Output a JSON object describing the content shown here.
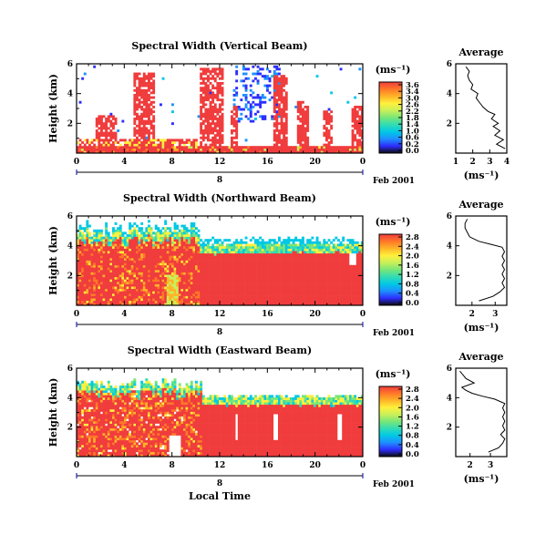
{
  "chart_data": {
    "type": "heatmap",
    "colorbar_unit": "(ms⁻¹)",
    "date_label": "Feb 2001",
    "x_title": "Local Time",
    "axis_labels": {
      "x_ticks": [
        "0",
        "4",
        "8",
        "12",
        "16",
        "20",
        "0"
      ],
      "date_day": "8",
      "time_range_hours": [
        0,
        24
      ]
    },
    "panels": [
      {
        "title": "Spectral Width (Vertical Beam)",
        "ylabel": "Height (km)",
        "y_ticks": [
          6,
          4,
          2
        ],
        "ylim": [
          0,
          6
        ],
        "colorbar_ticks": [
          "3.6",
          "3.4",
          "3.0",
          "2.6",
          "2.2",
          "1.8",
          "1.4",
          "1.0",
          "0.6",
          "0.2",
          "0.0"
        ],
        "profile": {
          "title": "Average",
          "xlabel": "(ms⁻¹)",
          "x_ticks": [
            1,
            2,
            3,
            4
          ],
          "xlim": [
            1,
            4
          ],
          "y_ticks": [
            2,
            4,
            6
          ],
          "ylim": [
            0,
            6
          ],
          "values": [
            [
              3.9,
              0.3
            ],
            [
              3.4,
              0.6
            ],
            [
              3.8,
              0.9
            ],
            [
              3.3,
              1.2
            ],
            [
              3.6,
              1.5
            ],
            [
              3.2,
              1.8
            ],
            [
              3.5,
              2.0
            ],
            [
              3.1,
              2.3
            ],
            [
              3.3,
              2.6
            ],
            [
              2.9,
              2.8
            ],
            [
              2.6,
              3.1
            ],
            [
              2.4,
              3.4
            ],
            [
              2.2,
              3.7
            ],
            [
              2.3,
              4.0
            ],
            [
              1.9,
              4.3
            ],
            [
              2.0,
              4.6
            ],
            [
              1.8,
              4.9
            ],
            [
              1.7,
              5.2
            ],
            [
              1.8,
              5.5
            ],
            [
              1.6,
              5.8
            ]
          ]
        }
      },
      {
        "title": "Spectral Width (Northward Beam)",
        "ylabel": "Height (km)",
        "y_ticks": [
          6,
          4,
          2
        ],
        "ylim": [
          0,
          6
        ],
        "colorbar_ticks": [
          "2.8",
          "2.4",
          "2.0",
          "1.6",
          "1.2",
          "0.8",
          "0.4",
          "0.0"
        ],
        "profile": {
          "title": "Average",
          "xlabel": "(ms⁻¹)",
          "x_ticks": [
            2,
            3
          ],
          "xlim": [
            1.3,
            3.5
          ],
          "y_ticks": [
            2,
            4,
            6
          ],
          "ylim": [
            0,
            6
          ],
          "values": [
            [
              2.3,
              0.3
            ],
            [
              2.9,
              0.6
            ],
            [
              3.2,
              0.9
            ],
            [
              3.4,
              1.2
            ],
            [
              3.3,
              1.5
            ],
            [
              3.4,
              1.8
            ],
            [
              3.3,
              2.1
            ],
            [
              3.4,
              2.4
            ],
            [
              3.3,
              2.7
            ],
            [
              3.4,
              3.0
            ],
            [
              3.3,
              3.3
            ],
            [
              3.4,
              3.6
            ],
            [
              3.3,
              3.9
            ],
            [
              2.8,
              4.1
            ],
            [
              2.3,
              4.3
            ],
            [
              1.9,
              4.6
            ],
            [
              1.8,
              4.9
            ],
            [
              1.7,
              5.2
            ],
            [
              1.7,
              5.5
            ],
            [
              1.8,
              5.8
            ]
          ]
        }
      },
      {
        "title": "Spectral Width (Eastward Beam)",
        "ylabel": "Height (km)",
        "y_ticks": [
          6,
          4,
          2
        ],
        "ylim": [
          0,
          6
        ],
        "colorbar_ticks": [
          "2.8",
          "2.4",
          "2.0",
          "1.6",
          "1.2",
          "0.8",
          "0.4",
          "0.0"
        ],
        "profile": {
          "title": "Average",
          "xlabel": "(ms⁻¹)",
          "x_ticks": [
            2,
            3
          ],
          "xlim": [
            1.3,
            3.8
          ],
          "y_ticks": [
            2,
            4,
            6
          ],
          "ylim": [
            0,
            6
          ],
          "values": [
            [
              2.9,
              0.3
            ],
            [
              3.4,
              0.6
            ],
            [
              3.6,
              0.9
            ],
            [
              3.7,
              1.2
            ],
            [
              3.5,
              1.5
            ],
            [
              3.7,
              1.8
            ],
            [
              3.6,
              2.1
            ],
            [
              3.7,
              2.4
            ],
            [
              3.6,
              2.7
            ],
            [
              3.7,
              3.0
            ],
            [
              3.6,
              3.3
            ],
            [
              3.7,
              3.6
            ],
            [
              3.2,
              3.9
            ],
            [
              2.6,
              4.1
            ],
            [
              2.1,
              4.3
            ],
            [
              1.8,
              4.5
            ],
            [
              1.6,
              4.7
            ],
            [
              2.2,
              5.0
            ],
            [
              1.8,
              5.3
            ],
            [
              1.5,
              5.8
            ]
          ]
        }
      }
    ]
  }
}
